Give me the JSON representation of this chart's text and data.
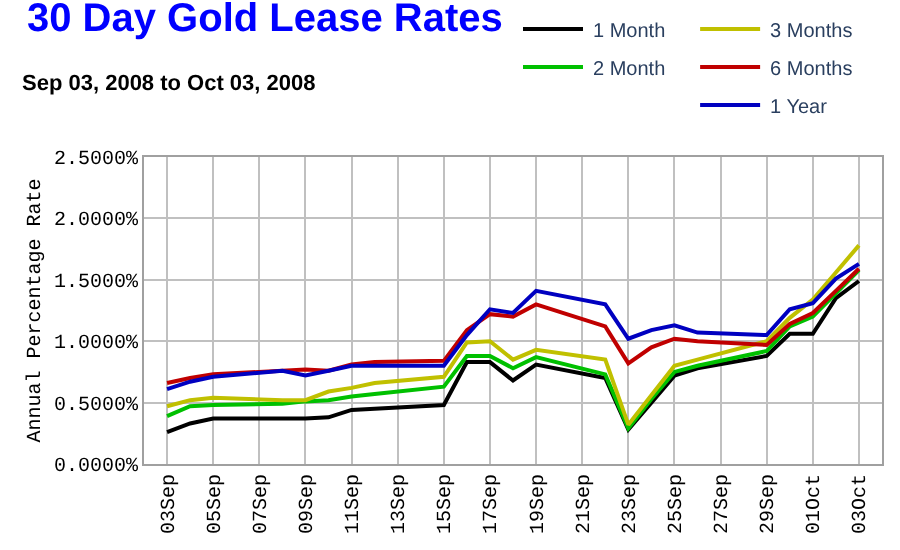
{
  "chart_data": {
    "type": "line",
    "title": "30 Day Gold Lease Rates",
    "subtitle": "Sep 03, 2008 to Oct 03, 2008",
    "ylabel": "Annual Percentage Rate",
    "x": [
      "2008-09-03",
      "2008-09-04",
      "2008-09-05",
      "2008-09-08",
      "2008-09-09",
      "2008-09-10",
      "2008-09-11",
      "2008-09-12",
      "2008-09-15",
      "2008-09-16",
      "2008-09-17",
      "2008-09-18",
      "2008-09-19",
      "2008-09-22",
      "2008-09-23",
      "2008-09-24",
      "2008-09-25",
      "2008-09-26",
      "2008-09-29",
      "2008-09-30",
      "2008-10-01",
      "2008-10-02",
      "2008-10-03"
    ],
    "series": [
      {
        "name": "1 Month",
        "color": "#000000",
        "values": [
          0.26,
          0.33,
          0.37,
          0.37,
          0.37,
          0.38,
          0.44,
          0.45,
          0.48,
          0.83,
          0.83,
          0.68,
          0.81,
          0.7,
          0.28,
          0.5,
          0.72,
          0.78,
          0.88,
          1.06,
          1.06,
          1.35,
          1.49
        ]
      },
      {
        "name": "2 Month",
        "color": "#00c000",
        "values": [
          0.39,
          0.47,
          0.48,
          0.49,
          0.51,
          0.52,
          0.55,
          0.57,
          0.63,
          0.88,
          0.88,
          0.78,
          0.87,
          0.73,
          0.29,
          0.53,
          0.75,
          0.8,
          0.92,
          1.12,
          1.2,
          1.39,
          1.58
        ]
      },
      {
        "name": "3 Months",
        "color": "#c0c000",
        "values": [
          0.47,
          0.52,
          0.54,
          0.52,
          0.52,
          0.59,
          0.62,
          0.66,
          0.71,
          0.99,
          1.0,
          0.85,
          0.93,
          0.85,
          0.32,
          0.56,
          0.8,
          0.85,
          1.0,
          1.19,
          1.34,
          1.56,
          1.78
        ]
      },
      {
        "name": "6 Months",
        "color": "#c00000",
        "values": [
          0.66,
          0.7,
          0.73,
          0.76,
          0.77,
          0.76,
          0.81,
          0.83,
          0.84,
          1.09,
          1.22,
          1.2,
          1.3,
          1.12,
          0.82,
          0.95,
          1.02,
          1.0,
          0.97,
          1.14,
          1.23,
          1.41,
          1.59
        ]
      },
      {
        "name": "1 Year",
        "color": "#0000c0",
        "values": [
          0.61,
          0.67,
          0.71,
          0.76,
          0.72,
          0.76,
          0.8,
          0.8,
          0.8,
          1.05,
          1.26,
          1.23,
          1.41,
          1.3,
          1.02,
          1.09,
          1.13,
          1.07,
          1.05,
          1.26,
          1.31,
          1.51,
          1.63
        ]
      }
    ],
    "xlim": [
      "2008-09-02",
      "2008-10-04"
    ],
    "xticks": [
      {
        "value": "2008-09-03",
        "label": "03Sep"
      },
      {
        "value": "2008-09-05",
        "label": "05Sep"
      },
      {
        "value": "2008-09-07",
        "label": "07Sep"
      },
      {
        "value": "2008-09-09",
        "label": "09Sep"
      },
      {
        "value": "2008-09-11",
        "label": "11Sep"
      },
      {
        "value": "2008-09-13",
        "label": "13Sep"
      },
      {
        "value": "2008-09-15",
        "label": "15Sep"
      },
      {
        "value": "2008-09-17",
        "label": "17Sep"
      },
      {
        "value": "2008-09-19",
        "label": "19Sep"
      },
      {
        "value": "2008-09-21",
        "label": "21Sep"
      },
      {
        "value": "2008-09-23",
        "label": "23Sep"
      },
      {
        "value": "2008-09-25",
        "label": "25Sep"
      },
      {
        "value": "2008-09-27",
        "label": "27Sep"
      },
      {
        "value": "2008-09-29",
        "label": "29Sep"
      },
      {
        "value": "2008-10-01",
        "label": "01Oct"
      },
      {
        "value": "2008-10-03",
        "label": "03Oct"
      }
    ],
    "ylim": [
      0,
      2.5
    ],
    "yticks": [
      {
        "value": 0,
        "label": "0.0000%"
      },
      {
        "value": 0.5,
        "label": "0.5000%"
      },
      {
        "value": 1.0,
        "label": "1.0000%"
      },
      {
        "value": 1.5,
        "label": "1.5000%"
      },
      {
        "value": 2.0,
        "label": "2.0000%"
      },
      {
        "value": 2.5,
        "label": "2.5000%"
      }
    ],
    "grid": true,
    "legend": "top right",
    "marker": "none",
    "line_style": "solid"
  }
}
